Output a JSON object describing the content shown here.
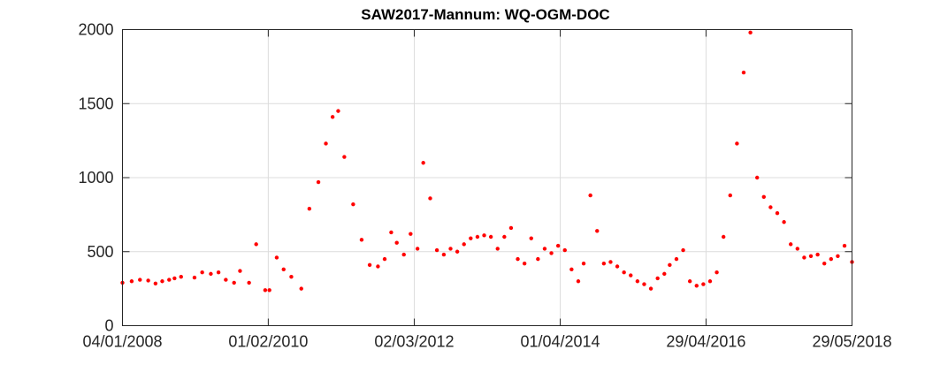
{
  "chart_data": {
    "type": "scatter",
    "title": "SAW2017-Mannum: WQ-OGM-DOC",
    "xlabel": "",
    "ylabel": "",
    "x_axis_type": "date",
    "xlim": [
      "04/01/2008",
      "29/05/2018"
    ],
    "ylim": [
      0,
      2000
    ],
    "x_ticks": [
      "04/01/2008",
      "01/02/2010",
      "02/03/2012",
      "01/04/2014",
      "29/04/2016",
      "29/05/2018"
    ],
    "y_ticks": [
      "0",
      "500",
      "1000",
      "1500",
      "2000"
    ],
    "grid": true,
    "legend": "none",
    "marker_color": "#ff0000",
    "series": [
      {
        "x": [
          "04/01/2008",
          "21/02/2008",
          "04/04/2008",
          "17/05/2008",
          "24/06/2008",
          "29/07/2008",
          "03/09/2008",
          "01/10/2008",
          "04/11/2008",
          "13/01/2009",
          "22/02/2009",
          "08/04/2009",
          "18/05/2009",
          "25/06/2009",
          "07/08/2009",
          "07/09/2009",
          "24/10/2009",
          "30/11/2009",
          "16/01/2010",
          "07/02/2010",
          "17/03/2010",
          "22/04/2010",
          "01/06/2010",
          "23/07/2010",
          "03/09/2010",
          "20/10/2010",
          "28/11/2010",
          "02/01/2011",
          "31/01/2011",
          "04/03/2011",
          "19/04/2011",
          "02/06/2011",
          "14/07/2011",
          "26/08/2011",
          "30/09/2011",
          "03/11/2011",
          "02/12/2011",
          "08/01/2012",
          "12/02/2012",
          "19/03/2012",
          "18/04/2012",
          "24/05/2012",
          "28/06/2012",
          "03/08/2012",
          "07/09/2012",
          "12/10/2012",
          "16/11/2012",
          "21/12/2012",
          "25/01/2013",
          "01/03/2013",
          "05/04/2013",
          "10/05/2013",
          "14/06/2013",
          "19/07/2013",
          "23/08/2013",
          "27/09/2013",
          "01/11/2013",
          "06/12/2013",
          "10/01/2014",
          "14/02/2014",
          "21/03/2014",
          "25/04/2014",
          "30/05/2014",
          "04/07/2014",
          "01/08/2014",
          "05/09/2014",
          "10/10/2014",
          "14/11/2014",
          "19/12/2014",
          "23/01/2015",
          "27/02/2015",
          "03/04/2015",
          "08/05/2015",
          "12/06/2015",
          "17/07/2015",
          "21/08/2015",
          "25/09/2015",
          "23/10/2015",
          "27/11/2015",
          "01/01/2016",
          "05/02/2016",
          "11/03/2016",
          "15/04/2016",
          "20/05/2016",
          "24/06/2016",
          "29/07/2016",
          "02/09/2016",
          "07/10/2016",
          "11/11/2016",
          "16/12/2016",
          "20/01/2017",
          "24/02/2017",
          "31/03/2017",
          "05/05/2017",
          "09/06/2017",
          "14/07/2017",
          "18/08/2017",
          "22/09/2017",
          "27/10/2017",
          "01/12/2017",
          "05/01/2018",
          "09/02/2018",
          "16/03/2018",
          "20/04/2018",
          "29/05/2018"
        ],
        "y": [
          290,
          300,
          310,
          305,
          285,
          300,
          310,
          320,
          330,
          325,
          360,
          350,
          360,
          310,
          290,
          370,
          290,
          550,
          240,
          240,
          460,
          380,
          330,
          250,
          790,
          970,
          1230,
          1410,
          1450,
          1140,
          820,
          580,
          410,
          400,
          450,
          630,
          560,
          480,
          620,
          520,
          1100,
          860,
          510,
          480,
          520,
          500,
          550,
          590,
          600,
          610,
          600,
          520,
          600,
          660,
          450,
          420,
          590,
          450,
          520,
          490,
          540,
          510,
          380,
          300,
          420,
          880,
          640,
          420,
          430,
          400,
          360,
          340,
          300,
          280,
          250,
          320,
          350,
          410,
          450,
          510,
          300,
          270,
          280,
          300,
          360,
          600,
          880,
          1230,
          1710,
          1980,
          1000,
          870,
          800,
          760,
          700,
          550,
          520,
          460,
          470,
          480,
          420,
          450,
          470,
          540,
          430
        ]
      }
    ]
  }
}
